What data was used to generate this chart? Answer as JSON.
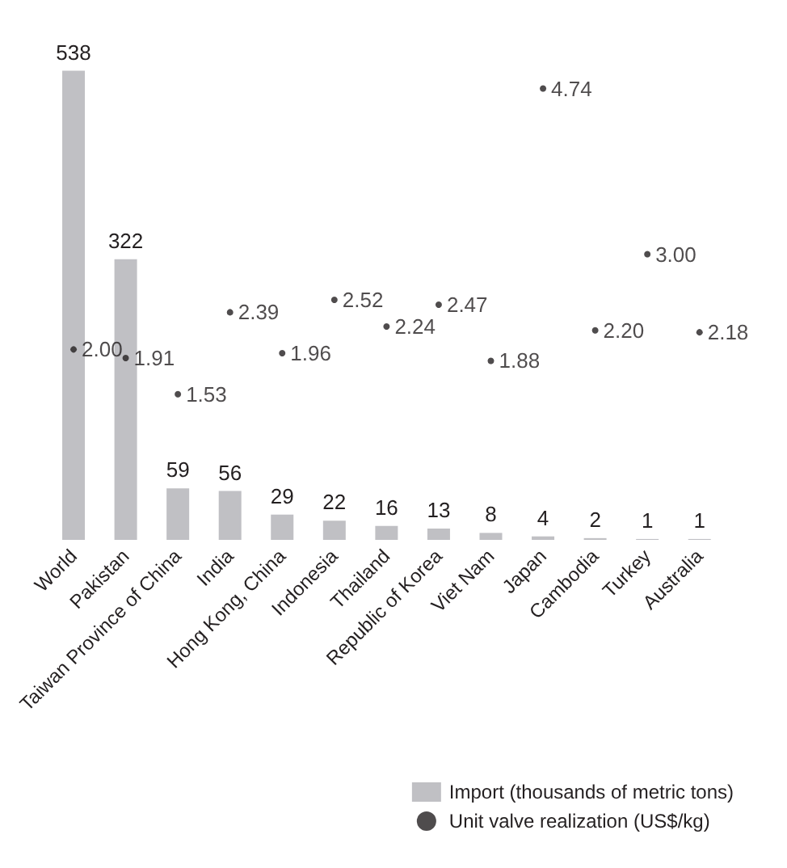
{
  "chart_data": {
    "type": "bar",
    "categories": [
      "World",
      "Pakistan",
      "Taiwan Province of China",
      "India",
      "Hong Kong, China",
      "Indonesia",
      "Thailand",
      "Republic of Korea",
      "Viet Nam",
      "Japan",
      "Cambodia",
      "Turkey",
      "Australia"
    ],
    "series": [
      {
        "name": "Import (thousands of metric tons)",
        "color": "#c0c0c4",
        "values": [
          538,
          322,
          59,
          56,
          29,
          22,
          16,
          13,
          8,
          4,
          2,
          1,
          1
        ]
      },
      {
        "name": "Unit valve realization (US$/kg)",
        "type": "scatter",
        "axis": "y2",
        "color": "#231f20",
        "values": [
          2.0,
          1.91,
          1.53,
          2.39,
          1.96,
          2.52,
          2.24,
          2.47,
          1.88,
          4.74,
          2.2,
          3.0,
          2.18
        ],
        "value_labels": [
          "2.00",
          "1.91",
          "1.53",
          "2.39",
          "1.96",
          "2.52",
          "2.24",
          "2.47",
          "1.88",
          "4.74",
          "2.20",
          "3.00",
          "2.18"
        ]
      }
    ],
    "data_labels": true,
    "legend": "bottom right",
    "grid": false,
    "tick_labels": "x",
    "marker": "circle"
  }
}
